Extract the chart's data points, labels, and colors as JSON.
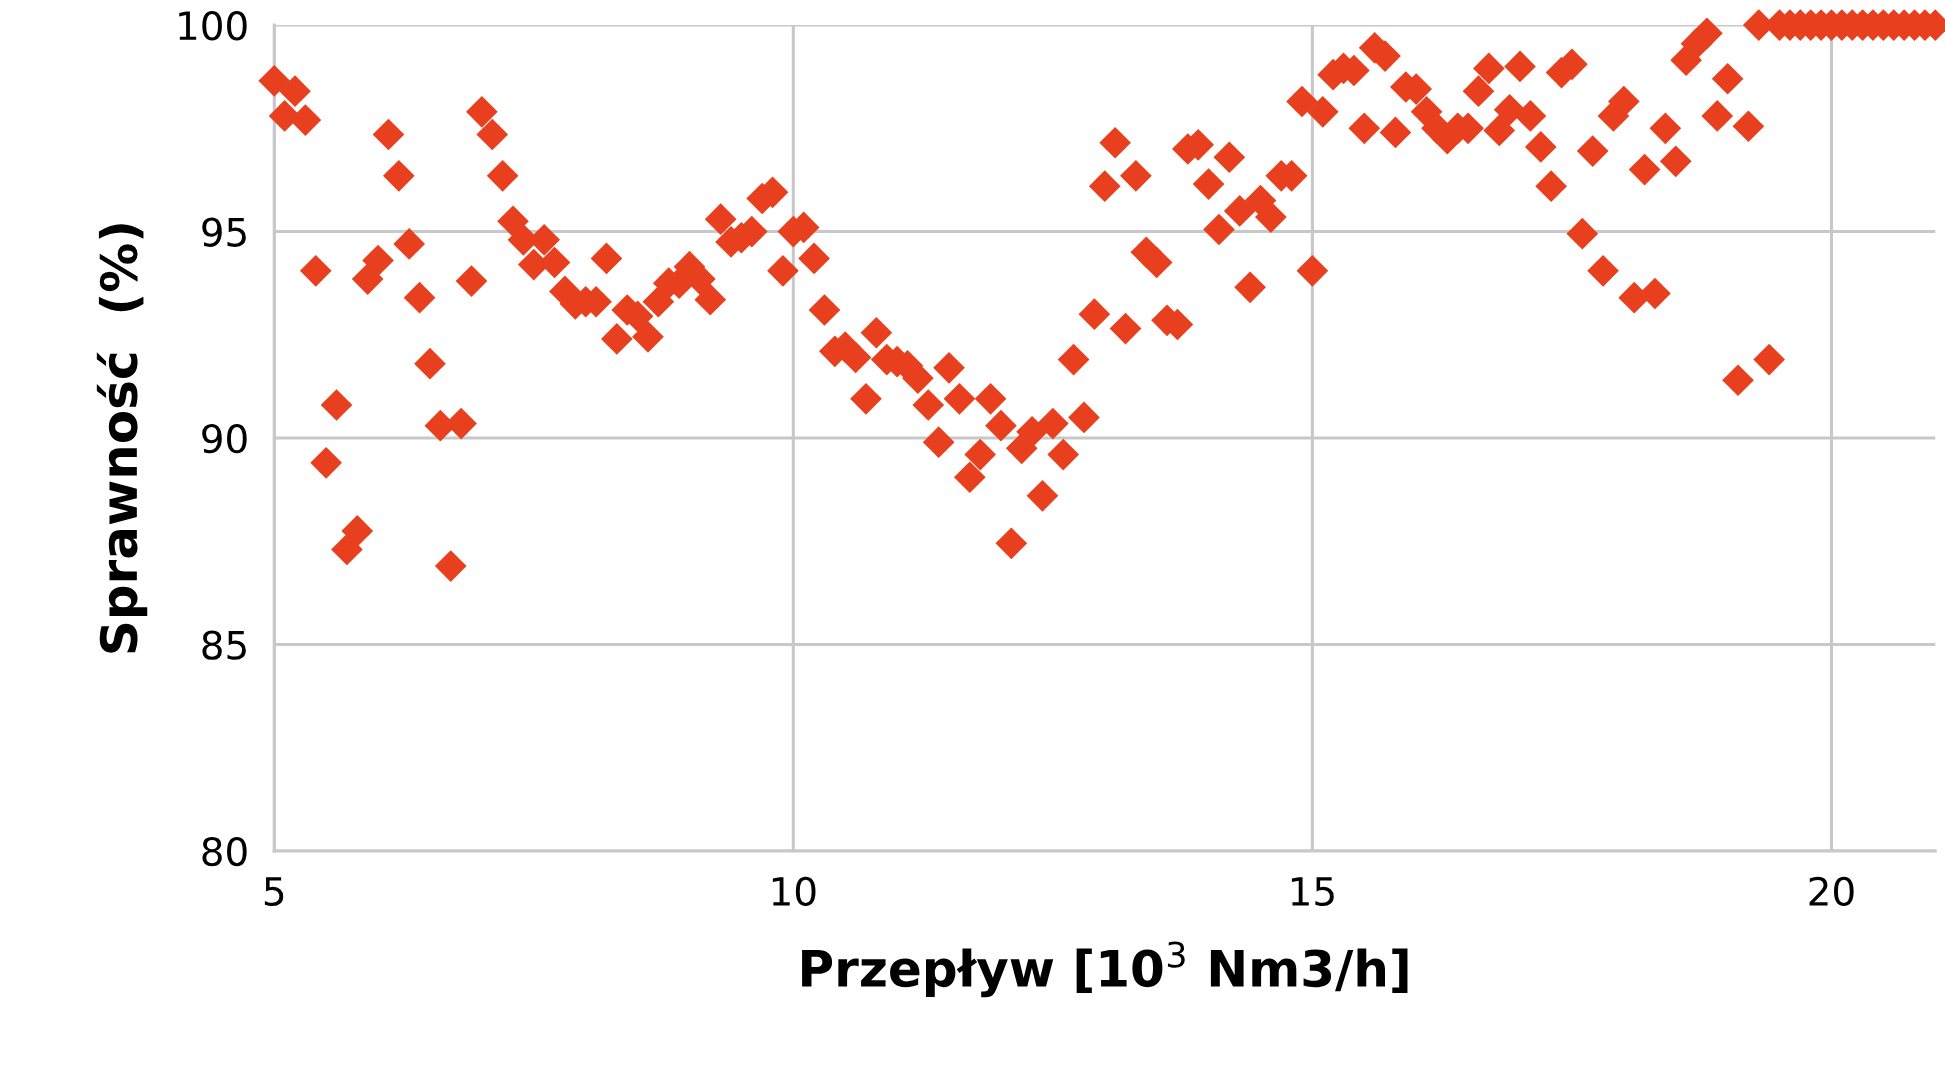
{
  "chart_data": {
    "type": "scatter",
    "xlabel": "Przepływ [10$^{3}$ Nm3/h]",
    "ylabel": "Sprawność  (%)",
    "xlim": [
      5,
      21
    ],
    "xticks": [
      5,
      10,
      15,
      20
    ],
    "ylim": [
      80,
      100
    ],
    "yticks": [
      80,
      85,
      90,
      95,
      100
    ],
    "grid": true,
    "marker": "diamond",
    "series": [
      {
        "color": "#e8401e",
        "x": [
          5.0,
          5.1,
          5.2,
          5.3,
          5.4,
          5.5,
          5.6,
          5.7,
          5.8,
          5.9,
          6.0,
          6.1,
          6.2,
          6.3,
          6.4,
          6.5,
          6.6,
          6.7,
          6.8,
          6.9,
          7.0,
          7.1,
          7.2,
          7.3,
          7.4,
          7.5,
          7.6,
          7.7,
          7.8,
          7.9,
          8.0,
          8.1,
          8.2,
          8.3,
          8.4,
          8.5,
          8.6,
          8.7,
          8.8,
          8.9,
          9.0,
          9.1,
          9.2,
          9.3,
          9.4,
          9.5,
          9.6,
          9.7,
          9.8,
          9.9,
          10.0,
          10.1,
          10.2,
          10.3,
          10.4,
          10.5,
          10.6,
          10.7,
          10.8,
          10.9,
          11.0,
          11.1,
          11.2,
          11.3,
          11.4,
          11.5,
          11.6,
          11.7,
          11.8,
          11.9,
          12.0,
          12.1,
          12.2,
          12.3,
          12.4,
          12.5,
          12.6,
          12.7,
          12.8,
          12.9,
          13.0,
          13.1,
          13.2,
          13.3,
          13.4,
          13.5,
          13.6,
          13.7,
          13.8,
          13.9,
          14.0,
          14.1,
          14.2,
          14.3,
          14.4,
          14.5,
          14.6,
          14.7,
          14.8,
          14.9,
          15.0,
          15.1,
          15.2,
          15.3,
          15.4,
          15.5,
          15.6,
          15.7,
          15.8,
          15.9,
          16.0,
          16.1,
          16.2,
          16.3,
          16.4,
          16.5,
          16.6,
          16.7,
          16.8,
          16.9,
          17.0,
          17.1,
          17.2,
          17.3,
          17.4,
          17.5,
          17.6,
          17.7,
          17.8,
          17.9,
          18.0,
          18.1,
          18.2,
          18.3,
          18.4,
          18.5,
          18.6,
          18.7,
          18.8,
          18.9,
          19.0,
          19.1,
          19.2,
          19.3,
          19.4,
          19.5,
          19.6,
          19.7,
          19.8,
          19.9,
          20.0,
          20.1,
          20.2,
          20.3,
          20.4,
          20.5,
          20.6,
          20.7,
          20.8,
          20.9,
          21.0
        ],
        "values": [
          98.65,
          97.8,
          98.4,
          97.7,
          94.05,
          89.4,
          90.8,
          87.3,
          87.75,
          93.85,
          94.3,
          97.35,
          96.35,
          94.7,
          93.4,
          91.8,
          90.3,
          86.9,
          90.35,
          93.8,
          97.9,
          97.35,
          96.35,
          95.25,
          94.8,
          94.2,
          94.8,
          94.25,
          93.55,
          93.25,
          93.3,
          93.3,
          94.35,
          92.4,
          93.1,
          92.95,
          92.45,
          93.3,
          93.75,
          93.75,
          94.15,
          93.85,
          93.35,
          95.3,
          94.75,
          94.85,
          95.0,
          95.8,
          95.95,
          94.05,
          95.0,
          95.1,
          94.35,
          93.1,
          92.1,
          92.2,
          91.95,
          90.95,
          92.55,
          91.9,
          91.85,
          91.75,
          91.45,
          90.8,
          89.9,
          91.7,
          90.95,
          89.05,
          89.6,
          90.95,
          90.3,
          87.45,
          89.75,
          90.15,
          88.6,
          90.35,
          89.6,
          91.9,
          90.5,
          93.0,
          96.1,
          97.15,
          92.65,
          96.35,
          94.5,
          94.25,
          92.85,
          92.75,
          97.0,
          97.1,
          96.15,
          95.05,
          96.8,
          95.5,
          93.65,
          95.75,
          95.35,
          96.35,
          96.35,
          98.15,
          94.05,
          97.9,
          98.8,
          98.95,
          98.9,
          97.5,
          99.45,
          99.25,
          97.4,
          98.5,
          98.45,
          97.9,
          97.5,
          97.25,
          97.5,
          97.5,
          98.4,
          98.95,
          97.45,
          97.95,
          99.0,
          97.8,
          97.05,
          96.1,
          98.85,
          99.05,
          94.95,
          96.95,
          94.05,
          97.8,
          98.15,
          93.4,
          96.5,
          93.5,
          97.5,
          96.7,
          99.15,
          99.55,
          99.8,
          97.8,
          98.7,
          91.4,
          97.55,
          100,
          91.9,
          100,
          100,
          100,
          100,
          100,
          100,
          100,
          100,
          100,
          100,
          100,
          100,
          100,
          100,
          100,
          100
        ]
      }
    ]
  }
}
